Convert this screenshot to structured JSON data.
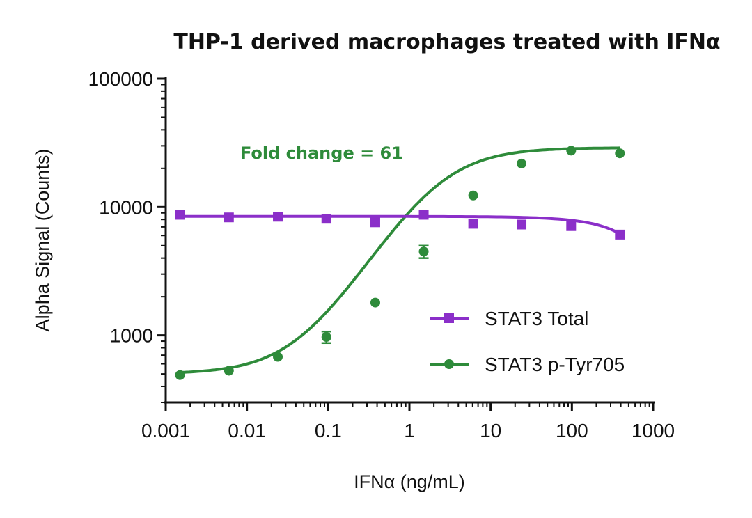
{
  "chart_data": {
    "type": "scatter",
    "title": "THP-1 derived macrophages treated with IFNα",
    "xlabel": "IFNα (ng/mL)",
    "ylabel": "Alpha Signal (Counts)",
    "x_scale": "log",
    "y_scale": "log",
    "xlim": [
      0.001,
      1000
    ],
    "ylim": [
      300,
      100000
    ],
    "x_ticks": [
      0.001,
      0.01,
      0.1,
      1,
      10,
      100,
      1000
    ],
    "x_tick_labels": [
      "0.001",
      "0.01",
      "0.1",
      "1",
      "10",
      "100",
      "1000"
    ],
    "y_ticks": [
      1000,
      10000,
      100000
    ],
    "y_tick_labels": [
      "1000",
      "10000",
      "100000"
    ],
    "grid": false,
    "legend_position": "bottom-right",
    "annotation": {
      "text": "Fold change = 61",
      "color": "#2e8b3a"
    },
    "series": [
      {
        "name": "STAT3 Total",
        "marker": "square",
        "color": "#8b2fc9",
        "x": [
          0.0015,
          0.006,
          0.024,
          0.095,
          0.38,
          1.5,
          6.1,
          24,
          98,
          390
        ],
        "y": [
          8700,
          8300,
          8400,
          8100,
          7600,
          8700,
          7400,
          7300,
          7100,
          6100
        ],
        "fit": "linear-decline"
      },
      {
        "name": "STAT3 p-Tyr705",
        "marker": "circle",
        "color": "#2e8b3a",
        "x": [
          0.0015,
          0.006,
          0.024,
          0.095,
          0.38,
          1.5,
          6.1,
          24,
          98,
          390
        ],
        "y": [
          490,
          530,
          680,
          970,
          1800,
          4500,
          12300,
          21800,
          27500,
          26200
        ],
        "y_err": [
          0,
          0,
          0,
          100,
          0,
          500,
          0,
          0,
          0,
          0
        ],
        "fit": "four-parameter-logistic"
      }
    ]
  }
}
